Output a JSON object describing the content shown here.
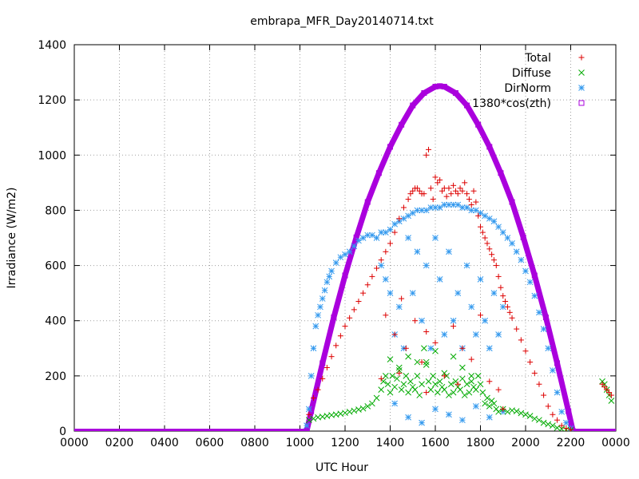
{
  "chart_data": {
    "type": "scatter",
    "title": "embrapa_MFR_Day20140714.txt",
    "xlabel": "UTC Hour",
    "ylabel": "Irradiance (W/m2)",
    "xlim": [
      0,
      2400
    ],
    "ylim": [
      0,
      1400
    ],
    "xticks": [
      "0000",
      "0200",
      "0400",
      "0600",
      "0800",
      "1000",
      "1200",
      "1400",
      "1600",
      "1800",
      "2000",
      "2200",
      "0000"
    ],
    "yticks": [
      0,
      200,
      400,
      600,
      800,
      1000,
      1200,
      1400
    ],
    "grid": true,
    "legend_position": "top-right",
    "series": [
      {
        "name": "Total",
        "marker": "plus",
        "color": "#dd0000",
        "x": [
          1040,
          1060,
          1080,
          1100,
          1120,
          1140,
          1160,
          1180,
          1200,
          1220,
          1240,
          1260,
          1280,
          1300,
          1320,
          1340,
          1360,
          1380,
          1400,
          1420,
          1440,
          1460,
          1480,
          1490,
          1500,
          1510,
          1520,
          1530,
          1540,
          1550,
          1560,
          1570,
          1580,
          1590,
          1600,
          1610,
          1620,
          1630,
          1640,
          1650,
          1660,
          1670,
          1680,
          1690,
          1700,
          1710,
          1720,
          1730,
          1740,
          1750,
          1760,
          1770,
          1780,
          1790,
          1800,
          1810,
          1820,
          1830,
          1840,
          1850,
          1860,
          1870,
          1880,
          1890,
          1900,
          1910,
          1920,
          1930,
          1940,
          1960,
          1980,
          2000,
          2020,
          2040,
          2060,
          2080,
          2100,
          2120,
          2140,
          2160,
          2180,
          2200,
          1380,
          1420,
          1450,
          1470,
          1510,
          1540,
          1560,
          1600,
          1640,
          1680,
          1720,
          1760,
          1800,
          1840,
          1880,
          1360,
          1440,
          1560,
          1700,
          1900,
          2340,
          2350,
          2360,
          2370,
          2380
        ],
        "y": [
          60,
          120,
          150,
          190,
          230,
          270,
          310,
          345,
          380,
          410,
          440,
          470,
          500,
          530,
          560,
          590,
          620,
          650,
          680,
          720,
          770,
          810,
          840,
          860,
          870,
          880,
          880,
          870,
          860,
          860,
          1000,
          1020,
          880,
          840,
          920,
          900,
          910,
          870,
          880,
          850,
          880,
          860,
          890,
          870,
          860,
          880,
          870,
          900,
          860,
          840,
          820,
          870,
          830,
          780,
          740,
          720,
          700,
          680,
          660,
          640,
          620,
          600,
          560,
          520,
          490,
          470,
          450,
          430,
          410,
          370,
          330,
          290,
          250,
          210,
          170,
          130,
          90,
          60,
          40,
          20,
          10,
          5,
          420,
          350,
          480,
          300,
          400,
          250,
          360,
          320,
          200,
          380,
          300,
          260,
          420,
          180,
          150,
          190,
          210,
          140,
          170,
          80,
          170,
          160,
          150,
          140,
          130
        ]
      },
      {
        "name": "Diffuse",
        "marker": "cross",
        "color": "#00aa00",
        "x": [
          1040,
          1060,
          1080,
          1100,
          1120,
          1140,
          1160,
          1180,
          1200,
          1220,
          1240,
          1260,
          1280,
          1300,
          1320,
          1340,
          1360,
          1370,
          1380,
          1390,
          1400,
          1410,
          1420,
          1430,
          1440,
          1450,
          1460,
          1470,
          1480,
          1490,
          1500,
          1510,
          1520,
          1530,
          1540,
          1550,
          1560,
          1570,
          1580,
          1590,
          1600,
          1610,
          1620,
          1630,
          1640,
          1650,
          1660,
          1670,
          1680,
          1690,
          1700,
          1710,
          1720,
          1730,
          1740,
          1750,
          1760,
          1770,
          1780,
          1790,
          1800,
          1810,
          1820,
          1830,
          1840,
          1850,
          1860,
          1870,
          1880,
          1900,
          1920,
          1940,
          1960,
          1980,
          2000,
          2020,
          2040,
          2060,
          2080,
          2100,
          2120,
          2140,
          2160,
          2180,
          2200,
          1400,
          1440,
          1480,
          1520,
          1560,
          1600,
          1640,
          1680,
          1720,
          1760,
          2340,
          2350,
          2360,
          2370,
          2380
        ],
        "y": [
          40,
          45,
          50,
          52,
          55,
          58,
          60,
          63,
          66,
          70,
          74,
          78,
          82,
          90,
          100,
          120,
          150,
          180,
          200,
          170,
          140,
          200,
          160,
          190,
          220,
          150,
          170,
          200,
          140,
          180,
          160,
          150,
          200,
          130,
          170,
          300,
          250,
          180,
          150,
          200,
          170,
          140,
          180,
          160,
          150,
          200,
          130,
          170,
          140,
          180,
          160,
          150,
          190,
          130,
          170,
          140,
          180,
          160,
          150,
          200,
          170,
          140,
          100,
          120,
          90,
          110,
          100,
          80,
          70,
          80,
          70,
          75,
          72,
          65,
          60,
          55,
          45,
          40,
          30,
          25,
          20,
          12,
          8,
          5,
          3,
          260,
          230,
          270,
          250,
          240,
          290,
          210,
          270,
          230,
          200,
          180,
          170,
          150,
          130,
          110
        ]
      },
      {
        "name": "DirNorm",
        "marker": "star",
        "color": "#3399ee",
        "x": [
          1030,
          1040,
          1050,
          1060,
          1070,
          1080,
          1090,
          1100,
          1110,
          1120,
          1130,
          1140,
          1160,
          1180,
          1200,
          1220,
          1240,
          1260,
          1280,
          1300,
          1320,
          1340,
          1360,
          1380,
          1400,
          1420,
          1440,
          1460,
          1480,
          1500,
          1520,
          1540,
          1560,
          1580,
          1600,
          1620,
          1640,
          1660,
          1680,
          1700,
          1720,
          1740,
          1760,
          1780,
          1800,
          1820,
          1840,
          1860,
          1880,
          1900,
          1920,
          1940,
          1960,
          1980,
          2000,
          2020,
          2040,
          2060,
          2080,
          2100,
          2120,
          2140,
          2160,
          2180,
          2200,
          1360,
          1380,
          1400,
          1420,
          1440,
          1460,
          1480,
          1500,
          1520,
          1540,
          1560,
          1580,
          1600,
          1620,
          1640,
          1660,
          1680,
          1700,
          1720,
          1740,
          1760,
          1780,
          1800,
          1820,
          1840,
          1860,
          1880,
          1900,
          1420,
          1480,
          1540,
          1600,
          1660,
          1720,
          1780,
          1840,
          1900
        ],
        "y": [
          20,
          80,
          200,
          300,
          380,
          420,
          450,
          480,
          510,
          540,
          560,
          580,
          610,
          630,
          640,
          650,
          670,
          690,
          700,
          710,
          710,
          700,
          720,
          720,
          730,
          750,
          760,
          770,
          780,
          790,
          800,
          800,
          800,
          810,
          810,
          810,
          820,
          820,
          820,
          820,
          810,
          810,
          800,
          800,
          790,
          780,
          770,
          760,
          740,
          720,
          700,
          680,
          650,
          620,
          580,
          540,
          490,
          430,
          370,
          300,
          220,
          140,
          70,
          30,
          10,
          600,
          550,
          500,
          350,
          450,
          300,
          700,
          500,
          650,
          400,
          600,
          300,
          700,
          550,
          350,
          650,
          400,
          500,
          300,
          600,
          450,
          350,
          550,
          400,
          300,
          500,
          350,
          450,
          100,
          50,
          30,
          80,
          60,
          40,
          90,
          50,
          70
        ]
      },
      {
        "name": "1380*cos(zth)",
        "marker": "box",
        "color": "#aa00dd",
        "x": [
          1030,
          1050,
          1100,
          1150,
          1200,
          1250,
          1300,
          1350,
          1400,
          1450,
          1500,
          1550,
          1600,
          1620,
          1640,
          1690,
          1740,
          1790,
          1840,
          1890,
          1940,
          1990,
          2040,
          2090,
          2140,
          2190,
          2210
        ],
        "y": [
          0,
          72,
          246,
          412,
          564,
          702,
          830,
          935,
          1030,
          1110,
          1180,
          1225,
          1248,
          1250,
          1248,
          1225,
          1180,
          1110,
          1030,
          935,
          830,
          702,
          564,
          412,
          246,
          72,
          0
        ]
      }
    ]
  }
}
